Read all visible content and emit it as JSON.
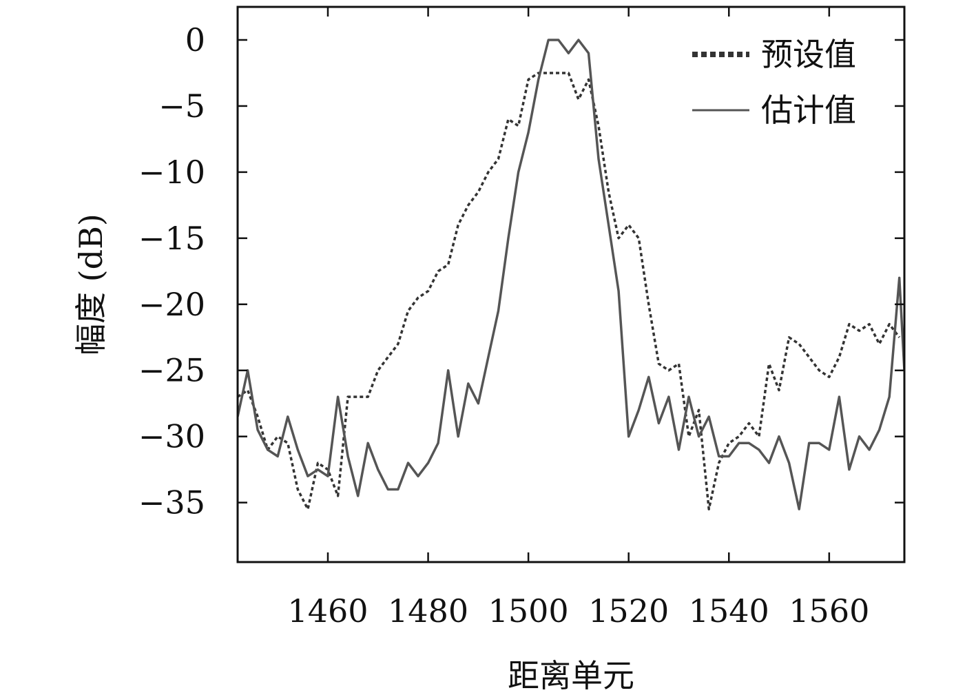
{
  "chart_data": {
    "type": "line",
    "title": "",
    "xlabel": "距离单元",
    "ylabel": "幅度 (dB)",
    "xlim": [
      1442,
      1575
    ],
    "ylim": [
      -39.5,
      2.5
    ],
    "xticks": [
      1460,
      1480,
      1500,
      1520,
      1540,
      1560
    ],
    "yticks": [
      0,
      -5,
      -10,
      -15,
      -20,
      -25,
      -30,
      -35
    ],
    "grid": false,
    "legend_position": "top-right",
    "series": [
      {
        "name": "预设值",
        "style": "dotted",
        "color": "#333333",
        "x": [
          1442,
          1444,
          1446,
          1448,
          1450,
          1452,
          1454,
          1456,
          1458,
          1460,
          1462,
          1464,
          1466,
          1468,
          1470,
          1472,
          1474,
          1476,
          1478,
          1480,
          1482,
          1484,
          1486,
          1488,
          1490,
          1492,
          1494,
          1496,
          1498,
          1500,
          1502,
          1504,
          1506,
          1508,
          1510,
          1512,
          1514,
          1516,
          1518,
          1520,
          1522,
          1524,
          1526,
          1528,
          1530,
          1532,
          1534,
          1536,
          1538,
          1540,
          1542,
          1544,
          1546,
          1548,
          1550,
          1552,
          1554,
          1556,
          1558,
          1560,
          1562,
          1564,
          1566,
          1568,
          1570,
          1572,
          1574
        ],
        "values": [
          -27,
          -26.5,
          -28.5,
          -31,
          -30,
          -30.5,
          -34,
          -35.5,
          -32,
          -32.5,
          -34.5,
          -27,
          -27,
          -27,
          -25,
          -24,
          -23,
          -20.5,
          -19.5,
          -19,
          -17.5,
          -17,
          -14,
          -12.5,
          -11.5,
          -10,
          -9,
          -6,
          -6.5,
          -3,
          -2.5,
          -2.5,
          -2.5,
          -2.5,
          -4.5,
          -3,
          -6.5,
          -11.5,
          -15,
          -14,
          -15,
          -20,
          -24.5,
          -25,
          -24.5,
          -30,
          -28,
          -35.5,
          -32,
          -30.5,
          -30,
          -29,
          -30,
          -24.5,
          -26.5,
          -22.5,
          -23,
          -24,
          -25,
          -25.5,
          -24,
          -21.5,
          -22,
          -21.5,
          -23,
          -21.5,
          -22.5
        ]
      },
      {
        "name": "估计值",
        "style": "solid",
        "color": "#555555",
        "x": [
          1442,
          1444,
          1446,
          1448,
          1450,
          1452,
          1454,
          1456,
          1458,
          1460,
          1462,
          1464,
          1466,
          1468,
          1470,
          1472,
          1474,
          1476,
          1478,
          1480,
          1482,
          1484,
          1486,
          1488,
          1490,
          1492,
          1494,
          1496,
          1498,
          1500,
          1502,
          1504,
          1506,
          1508,
          1510,
          1512,
          1514,
          1516,
          1518,
          1520,
          1522,
          1524,
          1526,
          1528,
          1530,
          1532,
          1534,
          1536,
          1538,
          1540,
          1542,
          1544,
          1546,
          1548,
          1550,
          1552,
          1554,
          1556,
          1558,
          1560,
          1562,
          1564,
          1566,
          1568,
          1570,
          1572,
          1574,
          1575
        ],
        "values": [
          -28.5,
          -25,
          -29.5,
          -31,
          -31.5,
          -28.5,
          -31,
          -33,
          -32.5,
          -33,
          -27,
          -31.5,
          -34.5,
          -30.5,
          -32.5,
          -34,
          -34,
          -32,
          -33,
          -32,
          -30.5,
          -25,
          -30,
          -26,
          -27.5,
          -24,
          -20.5,
          -15,
          -10,
          -7,
          -3,
          0,
          0,
          -1,
          0,
          -1,
          -9,
          -14,
          -19,
          -30,
          -28,
          -25.5,
          -29,
          -27,
          -31,
          -27,
          -30,
          -28.5,
          -31.5,
          -31.5,
          -30.5,
          -30.5,
          -31,
          -32,
          -30,
          -32,
          -35.5,
          -30.5,
          -30.5,
          -31,
          -27,
          -32.5,
          -30,
          -31,
          -29.5,
          -27,
          -18,
          -25
        ]
      }
    ]
  },
  "colors": {
    "axis": "#111111",
    "background": "#ffffff"
  }
}
